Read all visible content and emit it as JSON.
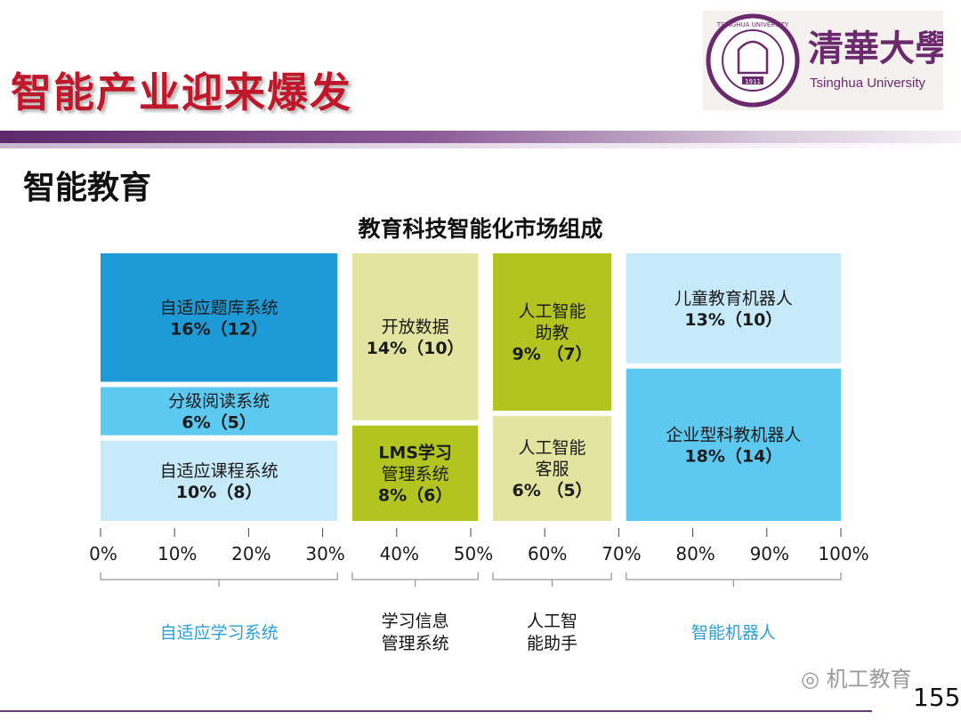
{
  "slide": {
    "title": "智能产业迎来爆发",
    "section_heading": "智能教育",
    "page_number": "155",
    "watermark": "机工教育"
  },
  "logo": {
    "chinese_name": "清華大學",
    "english_name": "Tsinghua University",
    "seal_text": "TSINGHUA UNIVERSITY",
    "seal_year": "1911"
  },
  "colors": {
    "title_red": "#c0182a",
    "purple_band": "#6b3a7a",
    "blue_dark": "#1e9bd7",
    "blue_mid": "#5ec9f0",
    "blue_light": "#c6eaf9",
    "olive_light": "#e3e4a0",
    "olive_dark": "#b2c51f",
    "group_label_blue": "#2a9fd6"
  },
  "chart_data": {
    "type": "marimekko",
    "title": "教育科技智能化市场组成",
    "x_ticks": [
      "0%",
      "10%",
      "20%",
      "30%",
      "40%",
      "50%",
      "60%",
      "70%",
      "80%",
      "90%",
      "100%"
    ],
    "xlim": [
      0,
      100
    ],
    "groups": [
      {
        "name": "自适应学习系统",
        "x_start": 0,
        "x_end": 32,
        "segments": [
          {
            "line1": "自适应题库系统",
            "line2": "16%（12）",
            "share": 16,
            "count": 12,
            "color": "#1e9bd7"
          },
          {
            "line1": "分级阅读系统",
            "line2": "6%（5）",
            "share": 6,
            "count": 5,
            "color": "#5ec9f0"
          },
          {
            "line1": "自适应课程系统",
            "line2": "10%（8）",
            "share": 10,
            "count": 8,
            "color": "#c6eaf9"
          }
        ]
      },
      {
        "name": "学习信息管理系统",
        "x_start": 34,
        "x_end": 51,
        "segments": [
          {
            "line1": "开放数据",
            "line2": "14%（10）",
            "share": 14,
            "count": 10,
            "color": "#e3e4a0"
          },
          {
            "line1": "LMS学习",
            "line2": "管理系统",
            "line3": "8%（6）",
            "share": 8,
            "count": 6,
            "color": "#b2c51f"
          }
        ]
      },
      {
        "name": "人工智能助手",
        "x_start": 53,
        "x_end": 69,
        "segments": [
          {
            "line1": "人工智能",
            "line2": "助教",
            "line3": "9% （7）",
            "share": 9,
            "count": 7,
            "color": "#b2c51f"
          },
          {
            "line1": "人工智能",
            "line2": "客服",
            "line3": "6% （5）",
            "share": 6,
            "count": 5,
            "color": "#e3e4a0"
          }
        ]
      },
      {
        "name": "智能机器人",
        "x_start": 71,
        "x_end": 100,
        "segments": [
          {
            "line1": "儿童教育机器人",
            "line2": "13%（10）",
            "share": 13,
            "count": 10,
            "color": "#c6eaf9"
          },
          {
            "line1": "企业型科教机器人",
            "line2": "18%（14）",
            "share": 18,
            "count": 14,
            "color": "#5ec9f0"
          }
        ]
      }
    ],
    "group_labels": [
      {
        "line1": "自适应学习系统",
        "color": "#2a9fd6"
      },
      {
        "line1": "学习信息",
        "line2": "管理系统",
        "color": "#111111"
      },
      {
        "line1": "人工智",
        "line2": "能助手",
        "color": "#111111"
      },
      {
        "line1": "智能机器人",
        "color": "#2a9fd6"
      }
    ]
  }
}
